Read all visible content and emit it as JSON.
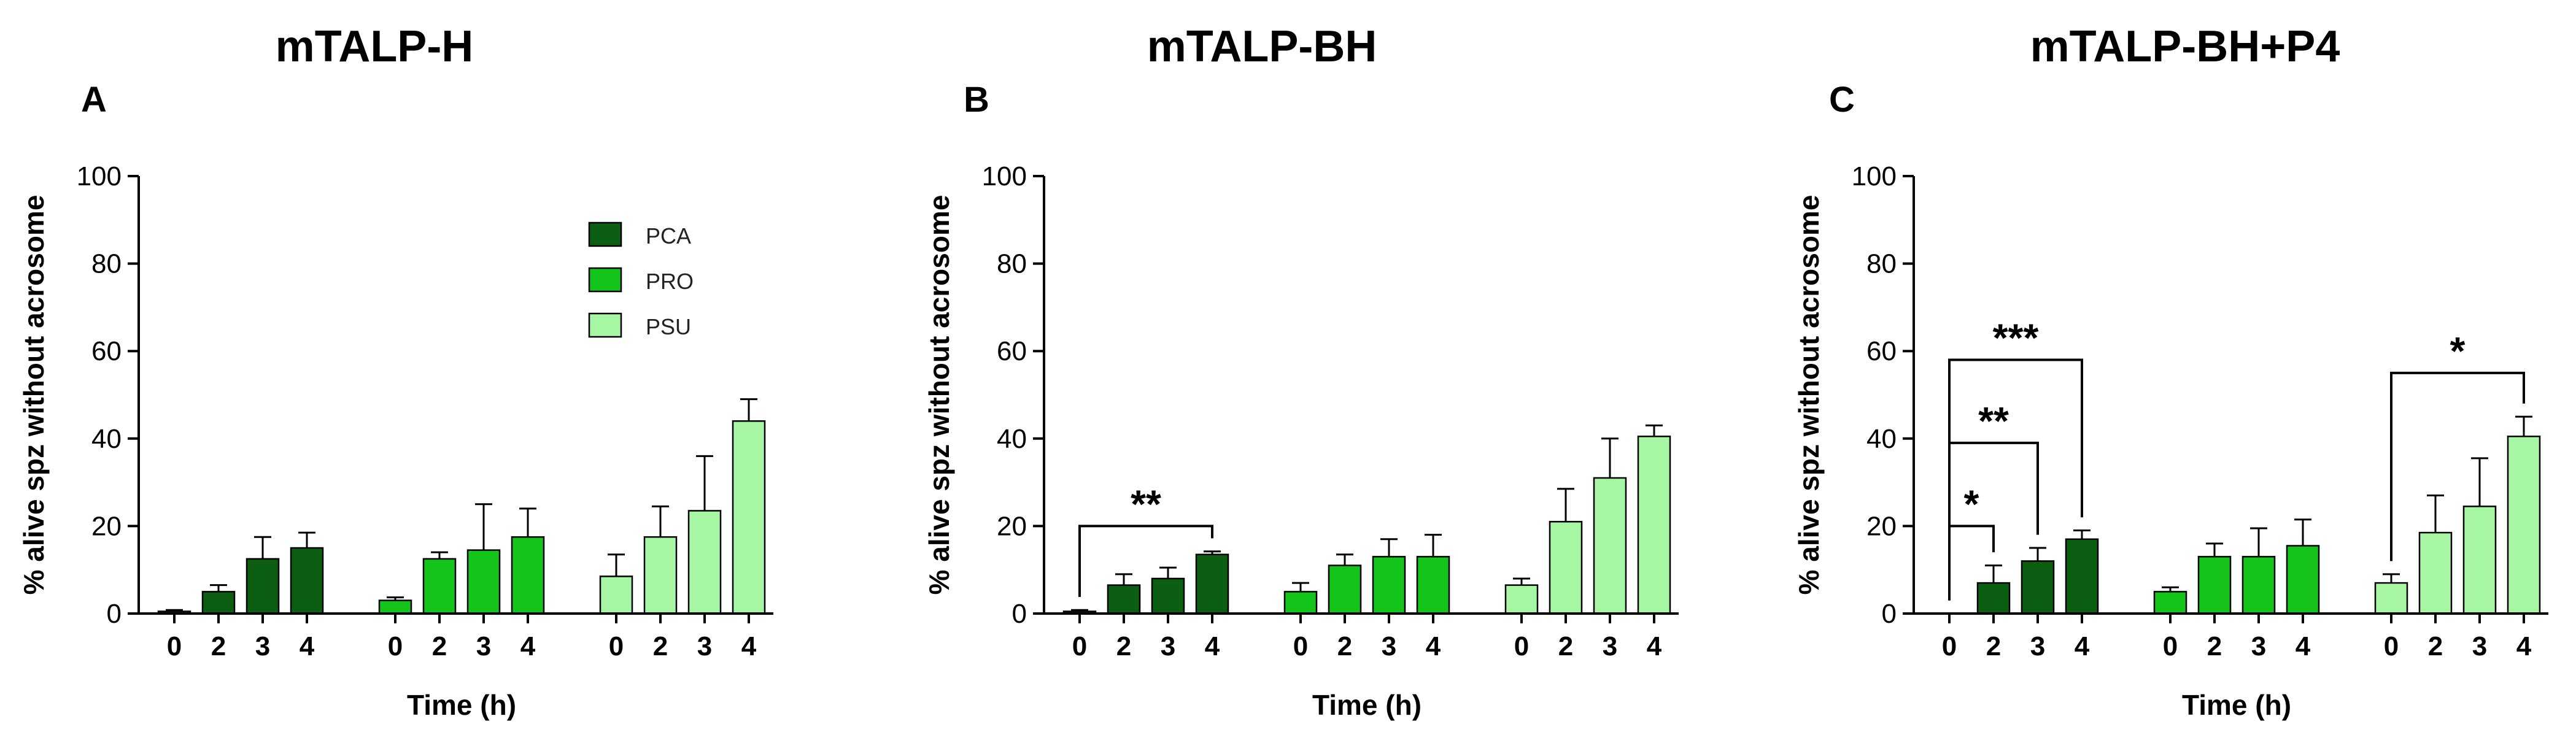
{
  "chart_data": [
    {
      "type": "bar",
      "panel": "A",
      "title": "mTALP-H",
      "xlabel": "Time (h)",
      "ylabel": "% alive spz without acrosome",
      "ylim": [
        0,
        100
      ],
      "yticks": [
        0,
        20,
        40,
        60,
        80,
        100
      ],
      "categories": [
        "0",
        "2",
        "3",
        "4"
      ],
      "legend": {
        "position": "upper-middle",
        "entries": [
          "PCA",
          "PRO",
          "PSU"
        ]
      },
      "series": [
        {
          "name": "PCA",
          "color": "#0b5e12",
          "values": [
            0.5,
            5,
            12.5,
            15
          ],
          "errors": [
            0.3,
            1.5,
            5,
            3.5
          ]
        },
        {
          "name": "PRO",
          "color": "#14c41a",
          "values": [
            3,
            12.5,
            14.5,
            17.5
          ],
          "errors": [
            0.7,
            1.5,
            10.5,
            6.5
          ]
        },
        {
          "name": "PSU",
          "color": "#a6f6a4",
          "values": [
            8.5,
            17.5,
            23.5,
            44
          ],
          "errors": [
            5,
            7,
            12.5,
            5
          ]
        }
      ],
      "annotations": []
    },
    {
      "type": "bar",
      "panel": "B",
      "title": "mTALP-BH",
      "xlabel": "Time (h)",
      "ylabel": "% alive spz without acrosome",
      "ylim": [
        0,
        100
      ],
      "yticks": [
        0,
        20,
        40,
        60,
        80,
        100
      ],
      "categories": [
        "0",
        "2",
        "3",
        "4"
      ],
      "series": [
        {
          "name": "PCA",
          "color": "#0b5e12",
          "values": [
            0.5,
            6.5,
            8,
            13.5
          ],
          "errors": [
            0.3,
            2.5,
            2.5,
            0.7
          ]
        },
        {
          "name": "PRO",
          "color": "#14c41a",
          "values": [
            5,
            11,
            13,
            13
          ],
          "errors": [
            2,
            2.5,
            4,
            5
          ]
        },
        {
          "name": "PSU",
          "color": "#a6f6a4",
          "values": [
            6.5,
            21,
            31,
            40.5
          ],
          "errors": [
            1.5,
            7.5,
            9,
            2.5
          ]
        }
      ],
      "annotations": [
        {
          "series": "PCA",
          "from": "0",
          "to": "4",
          "label": "**",
          "y": 20
        }
      ]
    },
    {
      "type": "bar",
      "panel": "C",
      "title": "mTALP-BH+P4",
      "xlabel": "Time (h)",
      "ylabel": "% alive spz without acrosome",
      "ylim": [
        0,
        100
      ],
      "yticks": [
        0,
        20,
        40,
        60,
        80,
        100
      ],
      "categories": [
        "0",
        "2",
        "3",
        "4"
      ],
      "series": [
        {
          "name": "PCA",
          "color": "#0b5e12",
          "values": [
            0,
            7,
            12,
            17
          ],
          "errors": [
            0,
            4,
            3,
            2
          ]
        },
        {
          "name": "PRO",
          "color": "#14c41a",
          "values": [
            5,
            13,
            13,
            15.5
          ],
          "errors": [
            1,
            3,
            6.5,
            6
          ]
        },
        {
          "name": "PSU",
          "color": "#a6f6a4",
          "values": [
            7,
            18.5,
            24.5,
            40.5
          ],
          "errors": [
            2,
            8.5,
            11,
            4.5
          ]
        }
      ],
      "annotations": [
        {
          "series": "PCA",
          "from": "0",
          "to": "2",
          "label": "*",
          "y": 20
        },
        {
          "series": "PCA",
          "from": "0",
          "to": "3",
          "label": "**",
          "y": 39
        },
        {
          "series": "PCA",
          "from": "0",
          "to": "4",
          "label": "***",
          "y": 58
        },
        {
          "series": "PSU",
          "from": "0",
          "to": "4",
          "label": "*",
          "y": 55
        }
      ]
    }
  ]
}
